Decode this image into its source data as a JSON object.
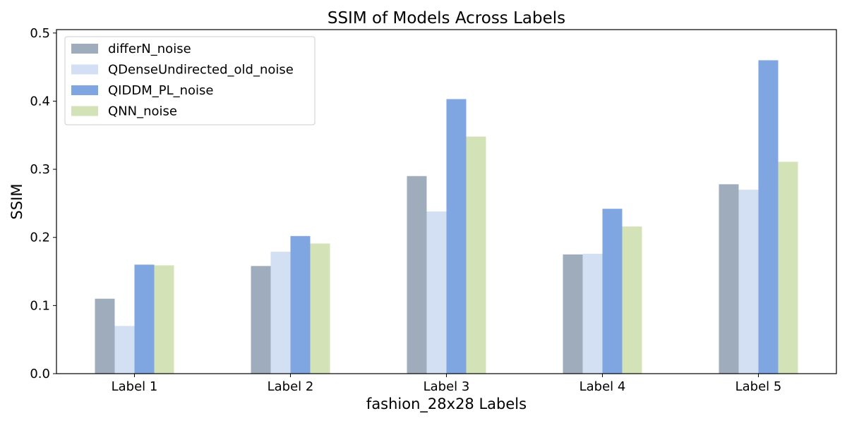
{
  "chart_data": {
    "type": "bar",
    "title": "SSIM of Models Across Labels",
    "xlabel": "fashion_28x28 Labels",
    "ylabel": "SSIM",
    "categories": [
      "Label 1",
      "Label 2",
      "Label 3",
      "Label 4",
      "Label 5"
    ],
    "ylim": [
      0,
      0.505
    ],
    "yticks": [
      "0.0",
      "0.1",
      "0.2",
      "0.3",
      "0.4",
      "0.5"
    ],
    "legend_position": "top-left",
    "grid": false,
    "series": [
      {
        "name": "differN_noise",
        "color": "#9facbb",
        "values": [
          0.11,
          0.158,
          0.29,
          0.175,
          0.278
        ]
      },
      {
        "name": "QDenseUndirected_old_noise",
        "color": "#d3e0f4",
        "values": [
          0.07,
          0.179,
          0.238,
          0.176,
          0.27
        ]
      },
      {
        "name": "QIDDM_PL_noise",
        "color": "#7fa6e0",
        "values": [
          0.16,
          0.202,
          0.403,
          0.242,
          0.46
        ]
      },
      {
        "name": "QNN_noise",
        "color": "#d4e3b7",
        "values": [
          0.159,
          0.191,
          0.348,
          0.216,
          0.311
        ]
      }
    ]
  }
}
